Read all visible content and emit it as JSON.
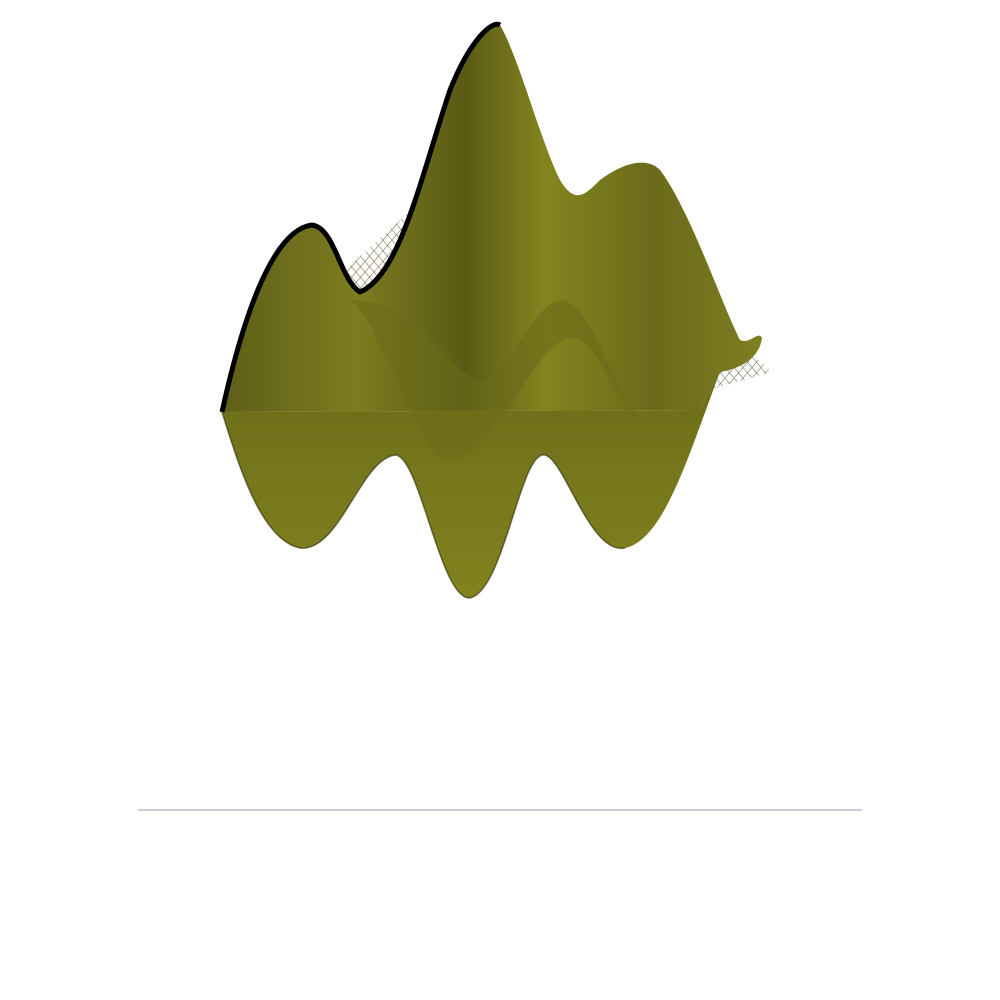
{
  "scene": {
    "kind": "3d-surface-render",
    "background_color": "#ffffff",
    "surface": {
      "name": "wavy-surface",
      "color": "#7a7a1e",
      "highlight_color": "#8e8e28",
      "shadow_color": "#55551a",
      "edge_color": "#000000"
    },
    "wireframe_mesh": {
      "name": "pyramid-wireframe-mesh",
      "style": "dense grid",
      "colors": {
        "left_face": "#b04a7a",
        "center": "#3a3ab0",
        "right_face": "#3a9a8a",
        "top_face": "#7a6a3a"
      }
    }
  }
}
